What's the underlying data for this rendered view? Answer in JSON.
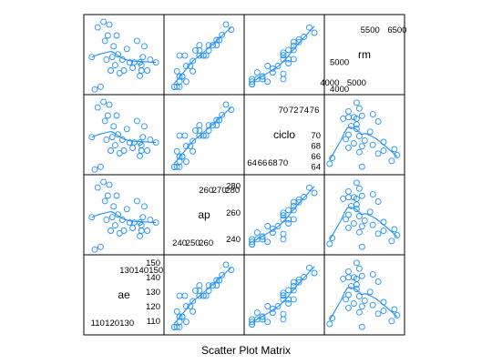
{
  "chart_data": {
    "type": "scatter",
    "title": "Scatter Plot Matrix",
    "colors": {
      "points": "#1e90ff",
      "smooth": "#1e90ff",
      "frame": "#000000"
    },
    "variables": [
      {
        "name": "ae",
        "range": [
          103,
          153
        ],
        "ticks_upper": [
          "130",
          "140",
          "150"
        ],
        "ticks_upper_values": [
          130,
          140,
          150
        ],
        "ticks_lower": [
          "110",
          "120",
          "130"
        ],
        "ticks_lower_values": [
          110,
          120,
          130
        ],
        "ticks_side": [
          "110",
          "120",
          "130",
          "140",
          "150"
        ],
        "ticks_side_values": [
          110,
          120,
          130,
          140,
          150
        ]
      },
      {
        "name": "ap",
        "range": [
          231,
          286
        ],
        "ticks_upper": [
          "260",
          "270",
          "280"
        ],
        "ticks_upper_values": [
          260,
          270,
          280
        ],
        "ticks_lower": [
          "240",
          "250",
          "260"
        ],
        "ticks_lower_values": [
          240,
          250,
          260
        ],
        "ticks_side": [
          "240",
          "260",
          "280"
        ],
        "ticks_side_values": [
          240,
          260,
          280
        ]
      },
      {
        "name": "ciclo",
        "range": [
          63.2,
          77.2
        ],
        "ticks_upper": [
          "70",
          "72",
          "74",
          "76"
        ],
        "ticks_upper_values": [
          70,
          72,
          74,
          76
        ],
        "ticks_lower": [
          "64",
          "66",
          "68",
          "70"
        ],
        "ticks_lower_values": [
          64,
          66,
          68,
          70
        ],
        "ticks_side": [
          "64",
          "66",
          "68",
          "70"
        ],
        "ticks_side_values": [
          64,
          66,
          68,
          70
        ]
      },
      {
        "name": "rm",
        "range": [
          3940,
          6640
        ],
        "ticks_upper": [
          "5500",
          "6500"
        ],
        "ticks_upper_values": [
          5500,
          6500
        ],
        "ticks_lower": [
          "4000",
          "5000"
        ],
        "ticks_lower_values": [
          4000,
          5000
        ],
        "ticks_side": [
          "4000",
          "5000"
        ],
        "ticks_side_values": [
          4000,
          5000
        ]
      }
    ],
    "observations": [
      {
        "ae": 150,
        "ap": 275,
        "ciclo": 76,
        "rm": 5000
      },
      {
        "ae": 146,
        "ap": 279,
        "ciclo": 75,
        "rm": 5100
      },
      {
        "ae": 144,
        "ap": 272,
        "ciclo": 74,
        "rm": 4700
      },
      {
        "ae": 142,
        "ap": 268,
        "ciclo": 72,
        "rm": 5600
      },
      {
        "ae": 141,
        "ap": 270,
        "ciclo": 73,
        "rm": 5200
      },
      {
        "ae": 140,
        "ap": 265,
        "ciclo": 72,
        "rm": 4900
      },
      {
        "ae": 139,
        "ap": 262,
        "ciclo": 72,
        "rm": 5000
      },
      {
        "ae": 140,
        "ap": 255,
        "ciclo": 72,
        "rm": 4700
      },
      {
        "ae": 139,
        "ap": 268,
        "ciclo": 73,
        "rm": 4500
      },
      {
        "ae": 137,
        "ap": 262,
        "ciclo": 71,
        "rm": 5800
      },
      {
        "ae": 135,
        "ap": 260,
        "ciclo": 70,
        "rm": 5000
      },
      {
        "ae": 134,
        "ap": 258,
        "ciclo": 70,
        "rm": 4800
      },
      {
        "ae": 132,
        "ap": 255,
        "ciclo": 71,
        "rm": 5000
      },
      {
        "ae": 130,
        "ap": 255,
        "ciclo": 70,
        "rm": 5500
      },
      {
        "ae": 128,
        "ap": 250,
        "ciclo": 69,
        "rm": 4700
      },
      {
        "ae": 127,
        "ap": 258,
        "ciclo": 70,
        "rm": 5100
      },
      {
        "ae": 125,
        "ap": 252,
        "ciclo": 71,
        "rm": 4600
      },
      {
        "ae": 124,
        "ap": 240,
        "ciclo": 70,
        "rm": 5300
      },
      {
        "ae": 123,
        "ap": 250,
        "ciclo": 67,
        "rm": 6000
      },
      {
        "ae": 122,
        "ap": 248,
        "ciclo": 68,
        "rm": 4900
      },
      {
        "ae": 121,
        "ap": 245,
        "ciclo": 68,
        "rm": 5600
      },
      {
        "ae": 120,
        "ap": 244,
        "ciclo": 70,
        "rm": 5200
      },
      {
        "ae": 119,
        "ap": 242,
        "ciclo": 66,
        "rm": 4700
      },
      {
        "ae": 118,
        "ap": 245,
        "ciclo": 65,
        "rm": 6400
      },
      {
        "ae": 117,
        "ap": 240,
        "ciclo": 64,
        "rm": 6000
      },
      {
        "ae": 116,
        "ap": 238,
        "ciclo": 67,
        "rm": 5100
      },
      {
        "ae": 115,
        "ap": 242,
        "ciclo": 66,
        "rm": 5800
      },
      {
        "ae": 114,
        "ap": 236,
        "ciclo": 64,
        "rm": 6500
      },
      {
        "ae": 112,
        "ap": 240,
        "ciclo": 65,
        "rm": 4100
      },
      {
        "ae": 110,
        "ap": 238,
        "ciclo": 64,
        "rm": 6300
      },
      {
        "ae": 108,
        "ap": 240,
        "ciclo": 66,
        "rm": 4000
      },
      {
        "ae": 106,
        "ap": 236,
        "ciclo": 64,
        "rm": 5200
      }
    ],
    "smooth_line": true,
    "grid": false,
    "legend": "none"
  }
}
